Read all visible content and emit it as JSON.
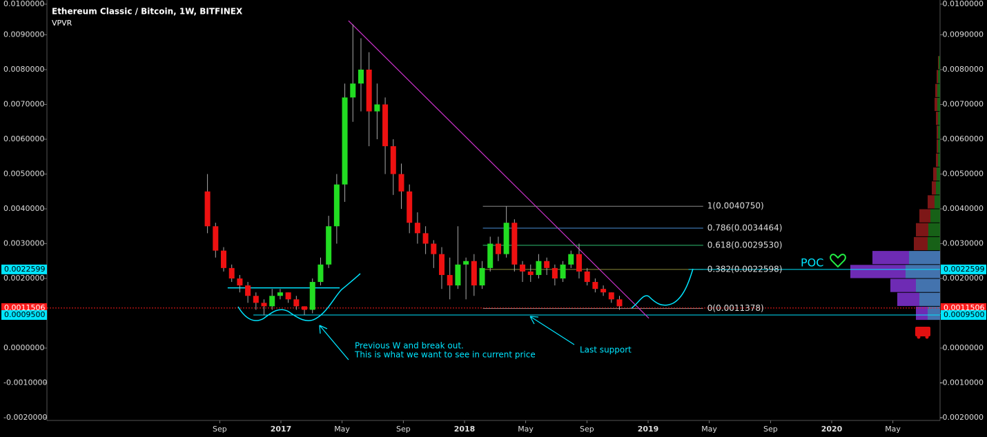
{
  "chart_data": {
    "type": "candlestick",
    "title": "Ethereum Classic / Bitcoin, 1W, BITFINEX",
    "subtitle": "VPVR",
    "ylim": [
      -0.002,
      0.01
    ],
    "yticks": [
      {
        "value": 0.01,
        "label": "0.0100000"
      },
      {
        "value": 0.009,
        "label": "0.0090000"
      },
      {
        "value": 0.008,
        "label": "0.0080000"
      },
      {
        "value": 0.007,
        "label": "0.0070000"
      },
      {
        "value": 0.006,
        "label": "0.0060000"
      },
      {
        "value": 0.005,
        "label": "0.0050000"
      },
      {
        "value": 0.004,
        "label": "0.0040000"
      },
      {
        "value": 0.003,
        "label": "0.0030000"
      },
      {
        "value": 0.002,
        "label": "0.0020000"
      },
      {
        "value": 0.001,
        "label": "0.0010000"
      },
      {
        "value": 0,
        "label": "0.0000000"
      },
      {
        "value": -0.001,
        "label": "-0.0010000"
      },
      {
        "value": -0.002,
        "label": "-0.0020000"
      }
    ],
    "xticks": [
      {
        "value": 2016.667,
        "label": "Sep"
      },
      {
        "value": 2017,
        "label": "2017"
      },
      {
        "value": 2017.333,
        "label": "May"
      },
      {
        "value": 2017.667,
        "label": "Sep"
      },
      {
        "value": 2018,
        "label": "2018"
      },
      {
        "value": 2018.333,
        "label": "May"
      },
      {
        "value": 2018.667,
        "label": "Sep"
      },
      {
        "value": 2019,
        "label": "2019"
      },
      {
        "value": 2019.333,
        "label": "May"
      },
      {
        "value": 2019.667,
        "label": "Sep"
      },
      {
        "value": 2020,
        "label": "2020"
      },
      {
        "value": 2020.333,
        "label": "May"
      }
    ],
    "up_color": "#22dd22",
    "down_color": "#ee1111",
    "candles": {
      "x": [
        2016.6,
        2016.644,
        2016.688,
        2016.732,
        2016.776,
        2016.82,
        2016.864,
        2016.908,
        2016.952,
        2016.996,
        2017.04,
        2017.084,
        2017.128,
        2017.172,
        2017.216,
        2017.26,
        2017.304,
        2017.348,
        2017.392,
        2017.436,
        2017.48,
        2017.524,
        2017.568,
        2017.612,
        2017.656,
        2017.7,
        2017.744,
        2017.788,
        2017.832,
        2017.876,
        2017.92,
        2017.964,
        2018.008,
        2018.052,
        2018.096,
        2018.14,
        2018.184,
        2018.228,
        2018.272,
        2018.316,
        2018.36,
        2018.404,
        2018.448,
        2018.492,
        2018.536,
        2018.58,
        2018.624,
        2018.668,
        2018.712,
        2018.756,
        2018.8,
        2018.844
      ],
      "open": [
        0.0045,
        0.0035,
        0.0028,
        0.0023,
        0.002,
        0.0018,
        0.0015,
        0.0013,
        0.0012,
        0.0015,
        0.0016,
        0.0014,
        0.0012,
        0.0011,
        0.0019,
        0.0024,
        0.0035,
        0.0047,
        0.0072,
        0.0076,
        0.008,
        0.0068,
        0.007,
        0.0058,
        0.005,
        0.0045,
        0.0036,
        0.0033,
        0.003,
        0.0027,
        0.0021,
        0.0018,
        0.0024,
        0.0025,
        0.0018,
        0.0023,
        0.003,
        0.0027,
        0.0036,
        0.0024,
        0.0022,
        0.0021,
        0.0025,
        0.0023,
        0.002,
        0.0024,
        0.0027,
        0.0022,
        0.0019,
        0.0017,
        0.0016,
        0.0014
      ],
      "high": [
        0.005,
        0.0036,
        0.0029,
        0.0024,
        0.0021,
        0.0019,
        0.0016,
        0.0014,
        0.0017,
        0.0017,
        0.0016,
        0.0015,
        0.0012,
        0.002,
        0.0026,
        0.0038,
        0.005,
        0.0076,
        0.0093,
        0.0089,
        0.0085,
        0.0076,
        0.0072,
        0.006,
        0.0053,
        0.0047,
        0.0039,
        0.0035,
        0.0031,
        0.0029,
        0.0026,
        0.0035,
        0.0026,
        0.0027,
        0.0025,
        0.0032,
        0.0032,
        0.00407,
        0.0037,
        0.0025,
        0.0024,
        0.0027,
        0.0026,
        0.0024,
        0.0025,
        0.0028,
        0.003,
        0.0023,
        0.002,
        0.0018,
        0.0016,
        0.0015
      ],
      "low": [
        0.0033,
        0.0026,
        0.0022,
        0.0019,
        0.0016,
        0.0013,
        0.0011,
        0.00095,
        0.0011,
        0.0014,
        0.0013,
        0.0011,
        0.00095,
        0.001,
        0.0018,
        0.0023,
        0.003,
        0.0042,
        0.0065,
        0.0068,
        0.0058,
        0.006,
        0.005,
        0.0044,
        0.004,
        0.0033,
        0.003,
        0.0027,
        0.0023,
        0.0017,
        0.0014,
        0.0017,
        0.0014,
        0.0015,
        0.0017,
        0.0022,
        0.0025,
        0.0026,
        0.0022,
        0.0019,
        0.0019,
        0.002,
        0.0021,
        0.0018,
        0.0019,
        0.0023,
        0.002,
        0.0018,
        0.0016,
        0.0015,
        0.0013,
        0.0011
      ],
      "close": [
        0.0035,
        0.0028,
        0.0023,
        0.002,
        0.0018,
        0.0015,
        0.0013,
        0.0012,
        0.0015,
        0.0016,
        0.0014,
        0.0012,
        0.0011,
        0.0019,
        0.0024,
        0.0035,
        0.0047,
        0.0072,
        0.0076,
        0.008,
        0.0068,
        0.007,
        0.0058,
        0.005,
        0.0045,
        0.0036,
        0.0033,
        0.003,
        0.0027,
        0.0021,
        0.0018,
        0.0024,
        0.0025,
        0.0018,
        0.0023,
        0.003,
        0.0027,
        0.0036,
        0.0024,
        0.0022,
        0.0021,
        0.0025,
        0.0023,
        0.002,
        0.0024,
        0.0027,
        0.0022,
        0.0019,
        0.0017,
        0.0016,
        0.0014,
        0.0012
      ]
    },
    "fib_x": [
      2018.1,
      2019.3
    ],
    "fib_levels": [
      {
        "value": 0.004075,
        "label": "1(0.0040750)",
        "color": "#8a8a8a"
      },
      {
        "value": 0.0034464,
        "label": "0.786(0.0034464)",
        "color": "#4a90d9"
      },
      {
        "value": 0.002953,
        "label": "0.618(0.0029530)",
        "color": "#2fbf71"
      },
      {
        "value": 0.0022598,
        "label": "0.382(0.0022598)",
        "color": "#8c8c3a"
      },
      {
        "value": 0.0011378,
        "label": "0(0.0011378)",
        "color": "#8a8a8a"
      }
    ],
    "price_lines": [
      {
        "value": 0.0022599,
        "label": "0.0022599",
        "color": "#00e5ff",
        "x_from": 2019.22
      },
      {
        "value": 0.0011506,
        "label": "0.0011506",
        "color": "#ff1a1a",
        "x_from": 2015.5
      },
      {
        "value": 0.00095,
        "label": "0.0009500",
        "color": "#00e5ff",
        "x_from": 2016.85
      }
    ],
    "trendline": {
      "x": [
        2017.368,
        2019.004
      ],
      "y": [
        0.009405,
        0.000857
      ],
      "color": "#cc33cc"
    },
    "resistance": {
      "x": [
        2016.71,
        2017.32
      ],
      "y": 0.00173,
      "color": "#00e5ff"
    },
    "volume_profile": {
      "bins": [
        0.0008,
        0.0012,
        0.0016,
        0.002,
        0.0024,
        0.0028,
        0.0032,
        0.0036,
        0.004,
        0.0044,
        0.0048,
        0.0052,
        0.0056,
        0.006,
        0.0064,
        0.0068,
        0.0072,
        0.0076,
        0.008,
        0.0084
      ],
      "up": [
        18,
        30,
        35,
        50,
        45,
        18,
        17,
        14,
        8,
        6,
        5,
        3,
        3,
        3,
        3,
        4,
        4,
        3,
        2
      ],
      "down": [
        17,
        32,
        37,
        80,
        53,
        20,
        18,
        16,
        10,
        6,
        5,
        3,
        2,
        2,
        3,
        4,
        3,
        2,
        1
      ],
      "value_area": [
        0.0008,
        0.0028
      ],
      "colors": {
        "up_in": "#4a7fc1",
        "down_in": "#7a30c8",
        "up_out": "#1a6b1a",
        "down_out": "#8b1a1a"
      }
    },
    "annotations": [
      {
        "text": [
          "Previous W and break out.",
          "This is what we want to see in current price"
        ]
      },
      {
        "text": [
          "Last support"
        ]
      },
      {
        "text": [
          "POC"
        ]
      }
    ]
  }
}
